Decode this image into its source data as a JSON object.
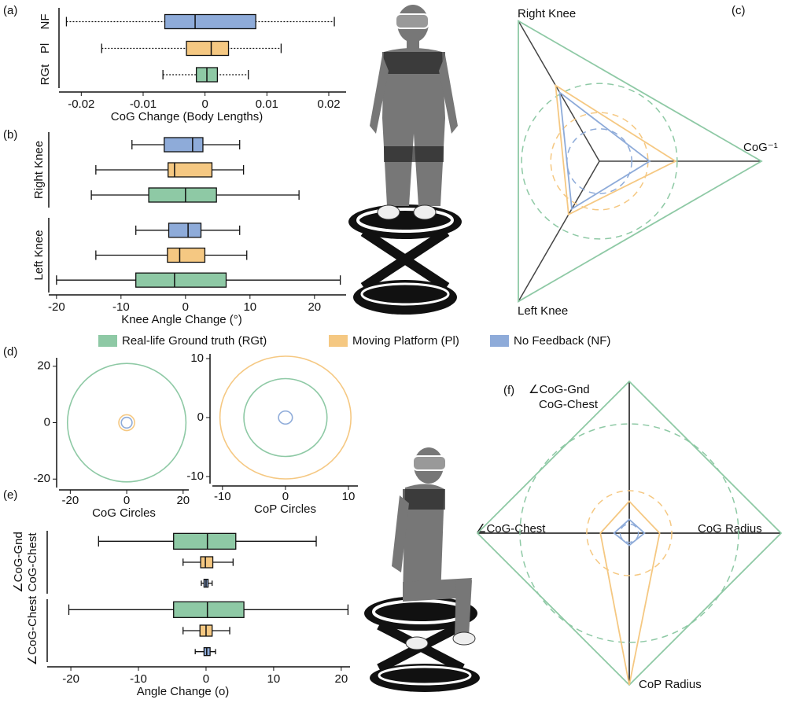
{
  "chart_data": [
    {
      "type": "box",
      "panel_label": "(a)",
      "xlabel": "CoG Change (Body Lengths)",
      "xlim": [
        -0.0236,
        0.0228
      ],
      "xticks": [
        -0.02,
        -0.01,
        0,
        0.01,
        0.02
      ],
      "groups": [
        {
          "label": "NF",
          "boxes": [
            {
              "color": "#8eabd9",
              "whislo": -0.0224,
              "q1": -0.0065,
              "med": -0.0016,
              "q3": 0.0082,
              "whishi": 0.0209
            }
          ]
        },
        {
          "label": "Pl",
          "boxes": [
            {
              "color": "#f5c882",
              "whislo": -0.0167,
              "q1": -0.003,
              "med": 0.001,
              "q3": 0.0038,
              "whishi": 0.0123
            }
          ]
        },
        {
          "label": "RGt",
          "boxes": [
            {
              "color": "#8ec9a5",
              "whislo": -0.0068,
              "q1": -0.0014,
              "med": 0.0003,
              "q3": 0.002,
              "whishi": 0.007
            }
          ]
        }
      ]
    },
    {
      "type": "box",
      "panel_label": "(b)",
      "xlabel": "Knee Angle Change (°)",
      "xlim": [
        -21.2,
        24.9
      ],
      "xticks": [
        -20,
        -10,
        0,
        10,
        20
      ],
      "groups": [
        {
          "label": "Right Knee",
          "boxes": [
            {
              "color": "#8eabd9",
              "whislo": -8.3,
              "q1": -3.3,
              "med": 1.1,
              "q3": 2.7,
              "whishi": 8.4
            },
            {
              "color": "#f5c882",
              "whislo": -13.9,
              "q1": -2.7,
              "med": -1.7,
              "q3": 4.1,
              "whishi": 9.0
            },
            {
              "color": "#8ec9a5",
              "whislo": -14.6,
              "q1": -5.7,
              "med": 0,
              "q3": 4.8,
              "whishi": 17.6
            }
          ]
        },
        {
          "label": "Left Knee",
          "boxes": [
            {
              "color": "#8eabd9",
              "whislo": -7.7,
              "q1": -2.6,
              "med": 0.4,
              "q3": 2.4,
              "whishi": 8.4
            },
            {
              "color": "#f5c882",
              "whislo": -13.9,
              "q1": -2.8,
              "med": -0.9,
              "q3": 3.0,
              "whishi": 9.5
            },
            {
              "color": "#8ec9a5",
              "whislo": -20,
              "q1": -7.7,
              "med": -1.7,
              "q3": 6.3,
              "whishi": 24.0
            }
          ]
        }
      ]
    },
    {
      "type": "radar",
      "panel_label": "(c)",
      "rlim": [
        0,
        1
      ],
      "categories": [
        "Right Knee",
        "CoG⁻¹",
        "Left Knee"
      ],
      "series": [
        {
          "color": "#8ec9a5",
          "values": [
            1,
            1,
            1
          ],
          "spread": 0.48
        },
        {
          "color": "#f5c882",
          "values": [
            0.54,
            0.47,
            0.38
          ],
          "spread": 0.3
        },
        {
          "color": "#8eabd9",
          "values": [
            0.49,
            0.31,
            0.34
          ],
          "spread": 0.2
        }
      ]
    },
    {
      "type": "circles",
      "panel_label": "(d)",
      "xlabel": "CoG Circles",
      "xlim": [
        -24,
        22
      ],
      "ylim": [
        -23,
        23
      ],
      "xticks": [
        -20,
        0,
        20
      ],
      "yticks": [
        -20,
        0,
        20
      ],
      "colors": [
        "#8ec9a5",
        "#f5c882",
        "#8eabd9"
      ],
      "radii": [
        21,
        2.8,
        1.9
      ]
    },
    {
      "type": "circles",
      "xlabel": "CoP Circles",
      "xlim": [
        -11.6,
        11.5
      ],
      "ylim": [
        -11.2,
        10.8
      ],
      "xticks": [
        -10,
        0,
        10
      ],
      "yticks": [
        -10,
        0,
        10
      ],
      "colors": [
        "#8ec9a5",
        "#f5c882",
        "#8eabd9"
      ],
      "radii": [
        6.6,
        10.4,
        1.1
      ]
    },
    {
      "type": "box",
      "panel_label": "(e)",
      "xlabel": "Angle Change (o)",
      "xlim": [
        -23.5,
        21.3
      ],
      "xticks": [
        -20,
        -10,
        0,
        10,
        20
      ],
      "groups": [
        {
          "label": [
            "∠CoG-Gnd",
            "CoG-Chest"
          ],
          "boxes": [
            {
              "color": "#8ec9a5",
              "whislo": -15.9,
              "q1": -4.8,
              "med": 0.2,
              "q3": 4.4,
              "whishi": 16.3
            },
            {
              "color": "#f5c882",
              "whislo": -3.4,
              "q1": -0.8,
              "med": -0.1,
              "q3": 1.0,
              "whishi": 4.0
            },
            {
              "color": "#8eabd9",
              "whislo": -0.7,
              "q1": -0.3,
              "med": 0,
              "q3": 0.3,
              "whishi": 0.9
            }
          ]
        },
        {
          "label": [
            "∠CoG-Chest"
          ],
          "boxes": [
            {
              "color": "#8ec9a5",
              "whislo": -20.3,
              "q1": -4.8,
              "med": 0.2,
              "q3": 5.6,
              "whishi": 21.0
            },
            {
              "color": "#f5c882",
              "whislo": -3.4,
              "q1": -0.9,
              "med": 0,
              "q3": 0.9,
              "whishi": 3.5
            },
            {
              "color": "#8eabd9",
              "whislo": -1.6,
              "q1": -0.3,
              "med": 0.1,
              "q3": 0.6,
              "whishi": 1.4
            }
          ]
        }
      ]
    },
    {
      "type": "radar",
      "panel_label": "(f)",
      "rlim": [
        0,
        1
      ],
      "categories": [
        [
          "∠CoG-Gnd",
          "CoG-Chest"
        ],
        [
          "CoG Radius"
        ],
        [
          "CoP Radius"
        ],
        [
          "∠CoG-Chest"
        ]
      ],
      "series": [
        {
          "color": "#8ec9a5",
          "values": [
            1,
            1,
            1,
            1
          ],
          "spread": 0.72
        },
        {
          "color": "#f5c882",
          "values": [
            0.21,
            0.2,
            1,
            0.19
          ],
          "spread": 0.28
        },
        {
          "color": "#8eabd9",
          "values": [
            0.09,
            0.1,
            0.08,
            0.1
          ],
          "spread": 0.06
        }
      ]
    }
  ],
  "legend": [
    {
      "label": "Real-life Ground truth (RGt)",
      "color": "#8ec9a5"
    },
    {
      "label": "Moving Platform (Pl)",
      "color": "#f5c882"
    },
    {
      "label": "No Feedback (NF)",
      "color": "#8eabd9"
    }
  ]
}
